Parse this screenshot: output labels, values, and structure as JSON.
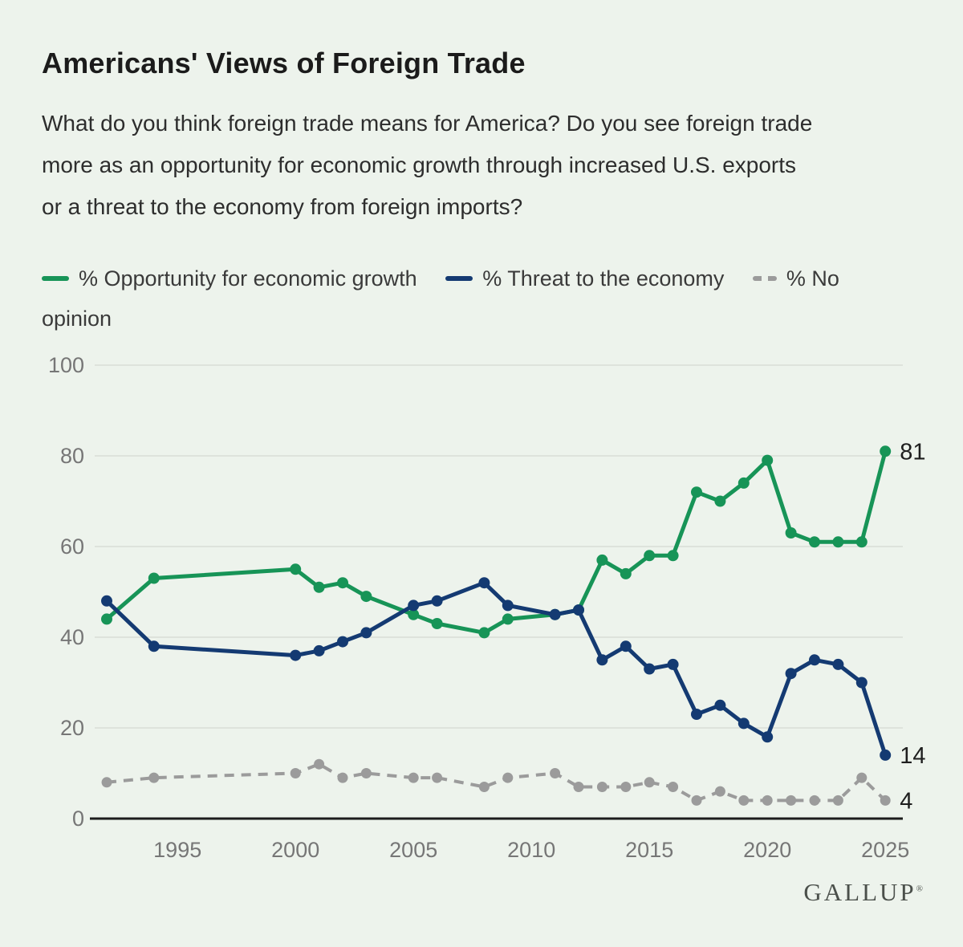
{
  "page": {
    "background": "#edf3ec"
  },
  "header": {
    "title": "Americans' Views of Foreign Trade",
    "subtitle_lines": [
      "What do you think foreign trade means for America? Do you see foreign trade",
      "more as an opportunity for economic growth through increased U.S. exports",
      "or a threat to the economy from foreign imports?"
    ]
  },
  "chart_data": {
    "type": "line",
    "title": "Americans' Views of Foreign Trade",
    "x": [
      1992,
      1994,
      2000,
      2001,
      2002,
      2003,
      2005,
      2006,
      2008,
      2009,
      2011,
      2012,
      2013,
      2014,
      2015,
      2016,
      2017,
      2018,
      2019,
      2020,
      2021,
      2022,
      2023,
      2024,
      2025
    ],
    "series": [
      {
        "name": "% Opportunity for economic growth",
        "color": "#179457",
        "style": "solid",
        "values": [
          44,
          53,
          55,
          51,
          52,
          49,
          45,
          43,
          41,
          44,
          45,
          46,
          57,
          54,
          58,
          58,
          72,
          70,
          74,
          79,
          63,
          61,
          61,
          61,
          81
        ],
        "end_label": "81"
      },
      {
        "name": "% Threat to the economy",
        "color": "#143a72",
        "style": "solid",
        "values": [
          48,
          38,
          36,
          37,
          39,
          41,
          47,
          48,
          52,
          47,
          45,
          46,
          35,
          38,
          33,
          34,
          23,
          25,
          21,
          18,
          32,
          35,
          34,
          30,
          14
        ],
        "end_label": "14"
      },
      {
        "name": "% No opinion",
        "color": "#9b9b9b",
        "style": "dashed",
        "values": [
          8,
          9,
          10,
          12,
          9,
          10,
          9,
          9,
          7,
          9,
          10,
          7,
          7,
          7,
          8,
          7,
          4,
          6,
          4,
          4,
          4,
          4,
          4,
          9,
          4
        ],
        "end_label": "4"
      }
    ],
    "xlabel": "",
    "ylabel": "",
    "x_ticks": [
      1995,
      2000,
      2005,
      2010,
      2015,
      2020,
      2025
    ],
    "y_ticks": [
      0,
      20,
      40,
      60,
      80,
      100
    ],
    "xlim": [
      1992,
      2025
    ],
    "ylim": [
      0,
      100
    ],
    "grid": true,
    "legend_position": "top",
    "axis_label_color": "#767676",
    "gridline_color": "#d9ded7",
    "end_label_color": "#1e1e1e"
  },
  "footer": {
    "brand": "GALLUP",
    "brand_mark": "®"
  }
}
